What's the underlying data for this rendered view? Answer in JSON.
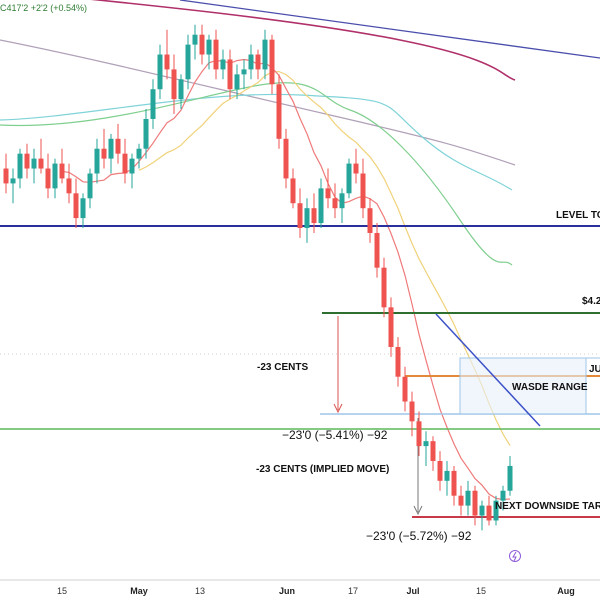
{
  "header": {
    "ticker_text": "C417'2  +2'2 (+0.54%)"
  },
  "chart_data": {
    "type": "candlestick",
    "x_ticks": [
      "15",
      "May",
      "13",
      "Jun",
      "17",
      "Jul",
      "15",
      "Aug"
    ],
    "ohlc": [
      [
        4.52,
        4.55,
        4.47,
        4.49
      ],
      [
        4.49,
        4.52,
        4.45,
        4.5
      ],
      [
        4.5,
        4.56,
        4.48,
        4.55
      ],
      [
        4.55,
        4.57,
        4.5,
        4.52
      ],
      [
        4.52,
        4.56,
        4.49,
        4.54
      ],
      [
        4.54,
        4.58,
        4.51,
        4.52
      ],
      [
        4.52,
        4.55,
        4.46,
        4.48
      ],
      [
        4.48,
        4.54,
        4.46,
        4.53
      ],
      [
        4.53,
        4.56,
        4.49,
        4.5
      ],
      [
        4.5,
        4.53,
        4.45,
        4.47
      ],
      [
        4.47,
        4.5,
        4.4,
        4.42
      ],
      [
        4.42,
        4.47,
        4.4,
        4.46
      ],
      [
        4.46,
        4.52,
        4.44,
        4.51
      ],
      [
        4.51,
        4.58,
        4.49,
        4.56
      ],
      [
        4.56,
        4.6,
        4.52,
        4.54
      ],
      [
        4.54,
        4.59,
        4.51,
        4.58
      ],
      [
        4.58,
        4.61,
        4.53,
        4.55
      ],
      [
        4.55,
        4.58,
        4.49,
        4.51
      ],
      [
        4.51,
        4.55,
        4.48,
        4.54
      ],
      [
        4.54,
        4.57,
        4.52,
        4.56
      ],
      [
        4.56,
        4.64,
        4.54,
        4.62
      ],
      [
        4.62,
        4.7,
        4.6,
        4.68
      ],
      [
        4.68,
        4.77,
        4.66,
        4.75
      ],
      [
        4.75,
        4.8,
        4.7,
        4.72
      ],
      [
        4.72,
        4.75,
        4.63,
        4.66
      ],
      [
        4.66,
        4.71,
        4.64,
        4.7
      ],
      [
        4.7,
        4.79,
        4.68,
        4.77
      ],
      [
        4.77,
        4.81,
        4.74,
        4.79
      ],
      [
        4.79,
        4.81,
        4.73,
        4.75
      ],
      [
        4.75,
        4.79,
        4.72,
        4.78
      ],
      [
        4.78,
        4.8,
        4.7,
        4.72
      ],
      [
        4.72,
        4.76,
        4.7,
        4.74
      ],
      [
        4.74,
        4.76,
        4.66,
        4.68
      ],
      [
        4.68,
        4.73,
        4.66,
        4.71
      ],
      [
        4.71,
        4.74,
        4.68,
        4.72
      ],
      [
        4.72,
        4.77,
        4.7,
        4.75
      ],
      [
        4.75,
        4.76,
        4.7,
        4.72
      ],
      [
        4.72,
        4.8,
        4.7,
        4.78
      ],
      [
        4.78,
        4.79,
        4.67,
        4.69
      ],
      [
        4.69,
        4.71,
        4.56,
        4.58
      ],
      [
        4.58,
        4.6,
        4.48,
        4.5
      ],
      [
        4.5,
        4.52,
        4.44,
        4.45
      ],
      [
        4.45,
        4.48,
        4.38,
        4.4
      ],
      [
        4.4,
        4.46,
        4.37,
        4.44
      ],
      [
        4.44,
        4.47,
        4.39,
        4.41
      ],
      [
        4.41,
        4.5,
        4.4,
        4.48
      ],
      [
        4.48,
        4.52,
        4.44,
        4.46
      ],
      [
        4.46,
        4.49,
        4.42,
        4.44
      ],
      [
        4.44,
        4.48,
        4.41,
        4.47
      ],
      [
        4.47,
        4.54,
        4.46,
        4.53
      ],
      [
        4.53,
        4.56,
        4.49,
        4.51
      ],
      [
        4.51,
        4.54,
        4.42,
        4.44
      ],
      [
        4.44,
        4.46,
        4.37,
        4.39
      ],
      [
        4.39,
        4.41,
        4.3,
        4.32
      ],
      [
        4.32,
        4.34,
        4.22,
        4.24
      ],
      [
        4.24,
        4.26,
        4.14,
        4.16
      ],
      [
        4.16,
        4.18,
        4.08,
        4.1
      ],
      [
        4.1,
        4.12,
        4.03,
        4.05
      ],
      [
        4.05,
        4.07,
        3.98,
        4.01
      ],
      [
        4.01,
        4.03,
        3.94,
        3.96
      ],
      [
        3.96,
        3.99,
        3.92,
        3.97
      ],
      [
        3.97,
        3.98,
        3.91,
        3.93
      ],
      [
        3.93,
        3.95,
        3.87,
        3.89
      ],
      [
        3.89,
        3.93,
        3.86,
        3.91
      ],
      [
        3.91,
        3.92,
        3.84,
        3.86
      ],
      [
        3.86,
        3.88,
        3.82,
        3.84
      ],
      [
        3.84,
        3.89,
        3.82,
        3.87
      ],
      [
        3.87,
        3.88,
        3.8,
        3.82
      ],
      [
        3.82,
        3.85,
        3.79,
        3.84
      ],
      [
        3.84,
        3.86,
        3.8,
        3.81
      ],
      [
        3.81,
        3.86,
        3.8,
        3.85
      ],
      [
        3.85,
        3.88,
        3.83,
        3.87
      ],
      [
        3.87,
        3.94,
        3.86,
        3.92
      ]
    ],
    "annotations": {
      "level_top_label": "LEVEL TO",
      "price_label": "$4.2",
      "cents_label_1": "-23 CENTS",
      "ju_label": "JU",
      "wasde_label": "WASDE RANGE",
      "move_label_1": "−23'0 (−5.41%) −92",
      "cents_label_2": "-23 CENTS (IMPLIED MOVE)",
      "next_target_label": "NEXT DOWNSIDE TARG",
      "move_label_2": "−23'0 (−5.72%) −92"
    },
    "colors": {
      "up": "#26a69a",
      "down": "#ef5350",
      "ma_red": "#ef7a7a",
      "ma_yellow": "#f0d27a",
      "ma_green": "#7fcf8f",
      "ma_cyan": "#7fd3d8",
      "ma_gray": "#b0a0b8",
      "ma_long": "#b0306a",
      "level_blue": "#2a2f9e",
      "level_green": "#2e6e2e",
      "level_orange": "#e08a3a",
      "range_box": "#9fc5e8",
      "trend_blue": "#3d52c8"
    }
  }
}
